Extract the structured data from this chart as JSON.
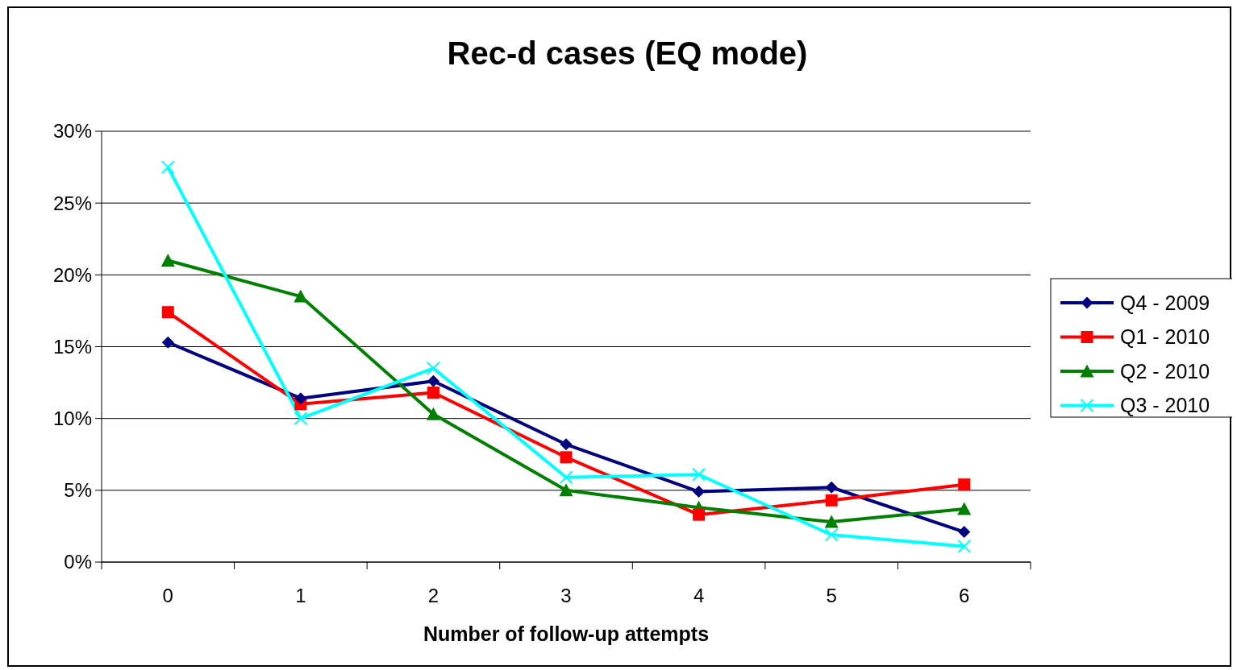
{
  "chart_data": {
    "type": "line",
    "title": "Rec-d cases (EQ mode)",
    "xlabel": "Number of follow-up attempts",
    "categories": [
      "0",
      "1",
      "2",
      "3",
      "4",
      "5",
      "6"
    ],
    "ylim": [
      0,
      30
    ],
    "yticks": [
      {
        "value": 0,
        "label": "0%"
      },
      {
        "value": 5,
        "label": "5%"
      },
      {
        "value": 10,
        "label": "10%"
      },
      {
        "value": 15,
        "label": "15%"
      },
      {
        "value": 20,
        "label": "20%"
      },
      {
        "value": 25,
        "label": "25%"
      },
      {
        "value": 30,
        "label": "30%"
      }
    ],
    "grid": "y",
    "legend": "right",
    "series": [
      {
        "name": "Q4 - 2009",
        "color": "#000080",
        "marker": "diamond",
        "values": [
          15.3,
          11.4,
          12.6,
          8.2,
          4.9,
          5.2,
          2.1
        ]
      },
      {
        "name": "Q1 - 2010",
        "color": "#ff0000",
        "marker": "square",
        "values": [
          17.4,
          11.0,
          11.8,
          7.3,
          3.3,
          4.3,
          5.4
        ]
      },
      {
        "name": "Q2 - 2010",
        "color": "#008000",
        "marker": "triangle",
        "values": [
          21.0,
          18.5,
          10.3,
          5.0,
          3.8,
          2.8,
          3.7
        ]
      },
      {
        "name": "Q3 - 2010",
        "color": "#00ffff",
        "marker": "cross",
        "values": [
          27.5,
          10.0,
          13.5,
          5.9,
          6.1,
          1.9,
          1.1
        ]
      }
    ]
  }
}
